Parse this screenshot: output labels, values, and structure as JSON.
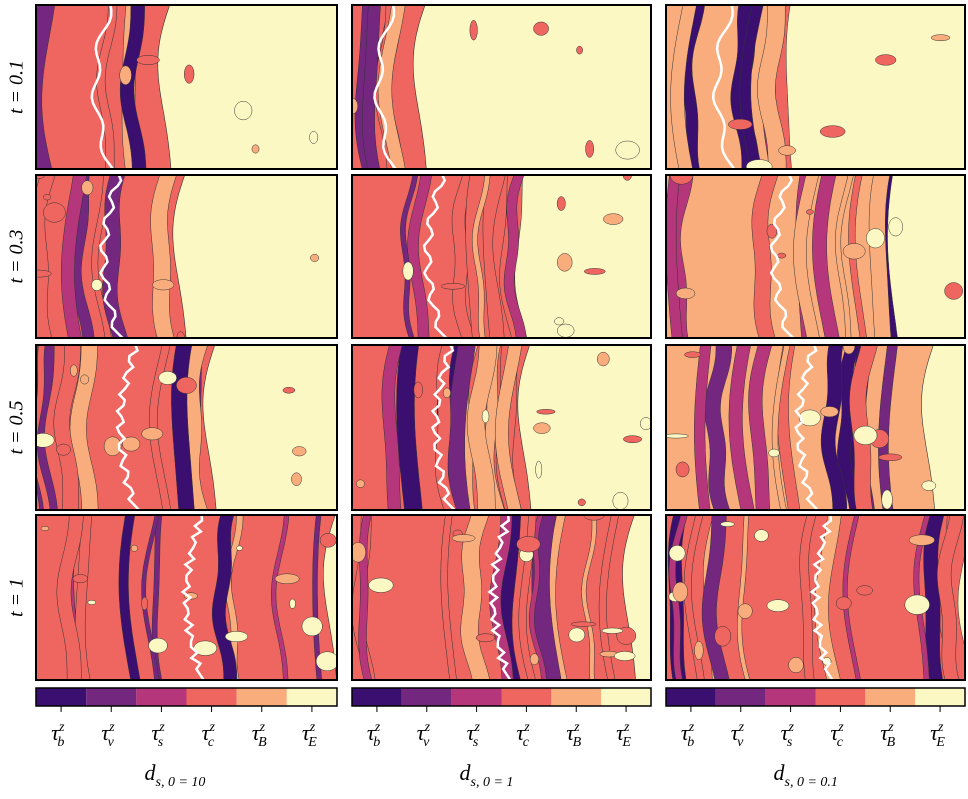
{
  "rows": [
    "t = 0.1",
    "t = 0.3",
    "t = 0.5",
    "t = 1"
  ],
  "columns": [
    {
      "base": "d",
      "sub": "s, 0 = 10"
    },
    {
      "base": "d",
      "sub": "s, 0 = 1"
    },
    {
      "base": "d",
      "sub": "s, 0 = 0.1"
    }
  ],
  "colorbar": {
    "colors": [
      "#3b0f6f",
      "#73277f",
      "#b5367a",
      "#ef6560",
      "#f9ad7c",
      "#fcf8c4"
    ],
    "labels": [
      {
        "base": "τ",
        "sub": "b",
        "sup": "z"
      },
      {
        "base": "τ",
        "sub": "v",
        "sup": "z"
      },
      {
        "base": "τ",
        "sub": "s",
        "sup": "z"
      },
      {
        "base": "τ",
        "sub": "c",
        "sup": "z"
      },
      {
        "base": "τ",
        "sub": "B",
        "sup": "z"
      },
      {
        "base": "τ",
        "sub": "E",
        "sup": "z"
      }
    ]
  }
}
